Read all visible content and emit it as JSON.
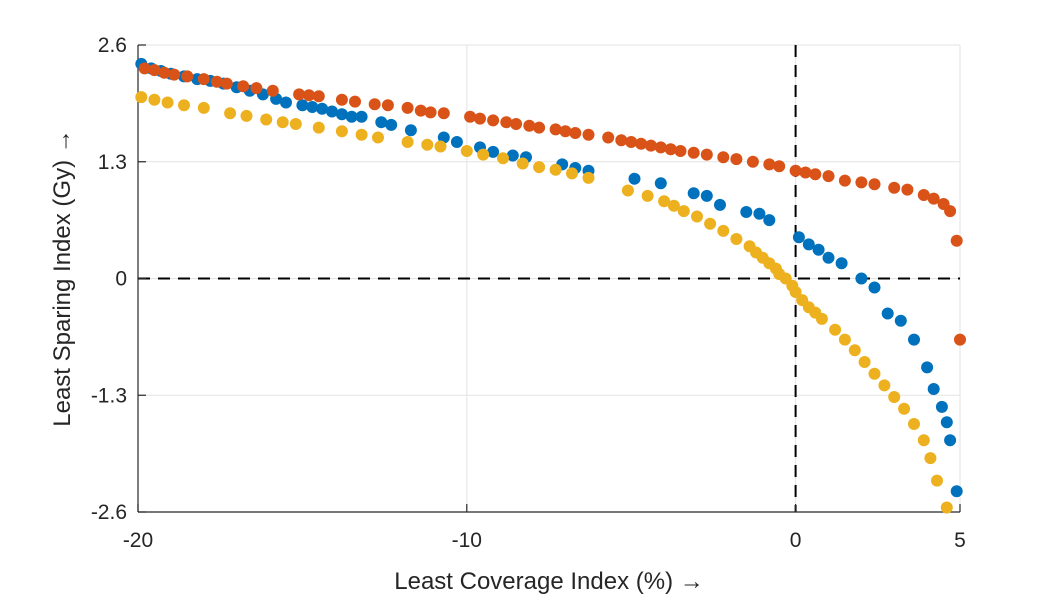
{
  "chart_data": {
    "type": "scatter",
    "xlabel": "Least Coverage Index (%) →",
    "ylabel": "Least Sparing Index (Gy) →",
    "xlim": [
      -20,
      5
    ],
    "ylim": [
      -2.6,
      2.6
    ],
    "xticks": [
      "-20",
      "-10",
      "0",
      "5"
    ],
    "xtick_values": [
      -20,
      -10,
      0,
      5
    ],
    "yticks": [
      "2.6",
      "1.3",
      "0",
      "-1.3",
      "-2.6"
    ],
    "ytick_values": [
      2.6,
      1.3,
      0,
      -1.3,
      -2.6
    ],
    "grid": true,
    "reference_lines": [
      {
        "axis": "x",
        "value": 0,
        "style": "dashed"
      },
      {
        "axis": "y",
        "value": 0,
        "style": "dashed"
      }
    ],
    "series": [
      {
        "color": "#0072BD",
        "points": [
          [
            -19.9,
            2.39
          ],
          [
            -19.6,
            2.34
          ],
          [
            -19.3,
            2.31
          ],
          [
            -19.0,
            2.28
          ],
          [
            -18.6,
            2.25
          ],
          [
            -18.2,
            2.22
          ],
          [
            -17.8,
            2.2
          ],
          [
            -17.4,
            2.17
          ],
          [
            -17.0,
            2.13
          ],
          [
            -16.6,
            2.09
          ],
          [
            -16.2,
            2.05
          ],
          [
            -15.8,
            2.0
          ],
          [
            -15.5,
            1.96
          ],
          [
            -15.0,
            1.93
          ],
          [
            -14.7,
            1.91
          ],
          [
            -14.4,
            1.89
          ],
          [
            -14.1,
            1.86
          ],
          [
            -13.8,
            1.83
          ],
          [
            -13.5,
            1.8
          ],
          [
            -13.2,
            1.8
          ],
          [
            -12.6,
            1.74
          ],
          [
            -12.3,
            1.71
          ],
          [
            -11.7,
            1.65
          ],
          [
            -10.7,
            1.57
          ],
          [
            -10.3,
            1.52
          ],
          [
            -9.6,
            1.46
          ],
          [
            -9.2,
            1.41
          ],
          [
            -8.6,
            1.37
          ],
          [
            -8.2,
            1.35
          ],
          [
            -7.1,
            1.27
          ],
          [
            -6.7,
            1.23
          ],
          [
            -6.3,
            1.2
          ],
          [
            -4.9,
            1.11
          ],
          [
            -4.1,
            1.06
          ],
          [
            -3.1,
            0.95
          ],
          [
            -2.7,
            0.92
          ],
          [
            -2.3,
            0.82
          ],
          [
            -1.5,
            0.74
          ],
          [
            -1.1,
            0.72
          ],
          [
            -0.8,
            0.65
          ],
          [
            0.1,
            0.46
          ],
          [
            0.4,
            0.38
          ],
          [
            0.7,
            0.32
          ],
          [
            1.0,
            0.23
          ],
          [
            1.4,
            0.17
          ],
          [
            2.0,
            0.0
          ],
          [
            2.4,
            -0.1
          ],
          [
            2.8,
            -0.39
          ],
          [
            3.2,
            -0.47
          ],
          [
            3.6,
            -0.68
          ],
          [
            4.0,
            -0.99
          ],
          [
            4.2,
            -1.23
          ],
          [
            4.45,
            -1.43
          ],
          [
            4.6,
            -1.6
          ],
          [
            4.7,
            -1.8
          ],
          [
            4.9,
            -2.37
          ]
        ]
      },
      {
        "color": "#D95319",
        "points": [
          [
            -19.8,
            2.34
          ],
          [
            -19.5,
            2.32
          ],
          [
            -19.2,
            2.29
          ],
          [
            -18.9,
            2.27
          ],
          [
            -18.5,
            2.25
          ],
          [
            -18.0,
            2.22
          ],
          [
            -17.6,
            2.19
          ],
          [
            -17.3,
            2.17
          ],
          [
            -16.8,
            2.14
          ],
          [
            -16.4,
            2.12
          ],
          [
            -15.9,
            2.09
          ],
          [
            -15.1,
            2.05
          ],
          [
            -14.8,
            2.04
          ],
          [
            -14.5,
            2.03
          ],
          [
            -13.8,
            1.99
          ],
          [
            -13.4,
            1.97
          ],
          [
            -12.8,
            1.94
          ],
          [
            -12.4,
            1.93
          ],
          [
            -11.8,
            1.9
          ],
          [
            -11.4,
            1.87
          ],
          [
            -11.1,
            1.85
          ],
          [
            -10.7,
            1.84
          ],
          [
            -9.9,
            1.8
          ],
          [
            -9.6,
            1.78
          ],
          [
            -9.2,
            1.76
          ],
          [
            -8.8,
            1.74
          ],
          [
            -8.5,
            1.72
          ],
          [
            -8.1,
            1.7
          ],
          [
            -7.8,
            1.68
          ],
          [
            -7.3,
            1.66
          ],
          [
            -7.0,
            1.64
          ],
          [
            -6.7,
            1.62
          ],
          [
            -6.3,
            1.6
          ],
          [
            -5.7,
            1.57
          ],
          [
            -5.3,
            1.54
          ],
          [
            -5.0,
            1.52
          ],
          [
            -4.7,
            1.5
          ],
          [
            -4.4,
            1.48
          ],
          [
            -4.1,
            1.46
          ],
          [
            -3.8,
            1.44
          ],
          [
            -3.5,
            1.42
          ],
          [
            -3.1,
            1.4
          ],
          [
            -2.7,
            1.38
          ],
          [
            -2.2,
            1.35
          ],
          [
            -1.8,
            1.33
          ],
          [
            -1.3,
            1.3
          ],
          [
            -0.8,
            1.27
          ],
          [
            -0.5,
            1.25
          ],
          [
            0.0,
            1.2
          ],
          [
            0.3,
            1.18
          ],
          [
            0.6,
            1.16
          ],
          [
            1.0,
            1.14
          ],
          [
            1.5,
            1.09
          ],
          [
            2.0,
            1.07
          ],
          [
            2.4,
            1.05
          ],
          [
            3.0,
            1.01
          ],
          [
            3.4,
            0.99
          ],
          [
            3.9,
            0.93
          ],
          [
            4.2,
            0.89
          ],
          [
            4.5,
            0.83
          ],
          [
            4.7,
            0.75
          ],
          [
            4.9,
            0.42
          ],
          [
            5.0,
            -0.68
          ]
        ]
      },
      {
        "color": "#EDB120",
        "points": [
          [
            -19.9,
            2.02
          ],
          [
            -19.5,
            1.99
          ],
          [
            -19.1,
            1.96
          ],
          [
            -18.6,
            1.93
          ],
          [
            -18.0,
            1.9
          ],
          [
            -17.2,
            1.84
          ],
          [
            -16.7,
            1.81
          ],
          [
            -16.1,
            1.77
          ],
          [
            -15.6,
            1.74
          ],
          [
            -15.2,
            1.72
          ],
          [
            -14.5,
            1.68
          ],
          [
            -13.8,
            1.64
          ],
          [
            -13.2,
            1.6
          ],
          [
            -12.7,
            1.57
          ],
          [
            -11.8,
            1.52
          ],
          [
            -11.2,
            1.49
          ],
          [
            -10.8,
            1.47
          ],
          [
            -10.0,
            1.42
          ],
          [
            -9.5,
            1.38
          ],
          [
            -8.9,
            1.34
          ],
          [
            -8.3,
            1.28
          ],
          [
            -7.8,
            1.24
          ],
          [
            -7.3,
            1.21
          ],
          [
            -6.8,
            1.17
          ],
          [
            -6.3,
            1.12
          ],
          [
            -5.1,
            0.98
          ],
          [
            -4.5,
            0.92
          ],
          [
            -4.0,
            0.86
          ],
          [
            -3.7,
            0.81
          ],
          [
            -3.4,
            0.75
          ],
          [
            -3.0,
            0.69
          ],
          [
            -2.6,
            0.61
          ],
          [
            -2.2,
            0.53
          ],
          [
            -1.8,
            0.44
          ],
          [
            -1.4,
            0.36
          ],
          [
            -1.2,
            0.29
          ],
          [
            -1.0,
            0.23
          ],
          [
            -0.8,
            0.17
          ],
          [
            -0.6,
            0.11
          ],
          [
            -0.5,
            0.05
          ],
          [
            -0.3,
            0.0
          ],
          [
            -0.1,
            -0.08
          ],
          [
            0.0,
            -0.15
          ],
          [
            0.2,
            -0.24
          ],
          [
            0.4,
            -0.32
          ],
          [
            0.6,
            -0.38
          ],
          [
            0.8,
            -0.45
          ],
          [
            1.2,
            -0.57
          ],
          [
            1.5,
            -0.68
          ],
          [
            1.8,
            -0.8
          ],
          [
            2.1,
            -0.93
          ],
          [
            2.4,
            -1.06
          ],
          [
            2.7,
            -1.19
          ],
          [
            3.0,
            -1.32
          ],
          [
            3.3,
            -1.45
          ],
          [
            3.6,
            -1.62
          ],
          [
            3.9,
            -1.8
          ],
          [
            4.1,
            -2.0
          ],
          [
            4.3,
            -2.25
          ],
          [
            4.6,
            -2.55
          ]
        ]
      }
    ]
  }
}
